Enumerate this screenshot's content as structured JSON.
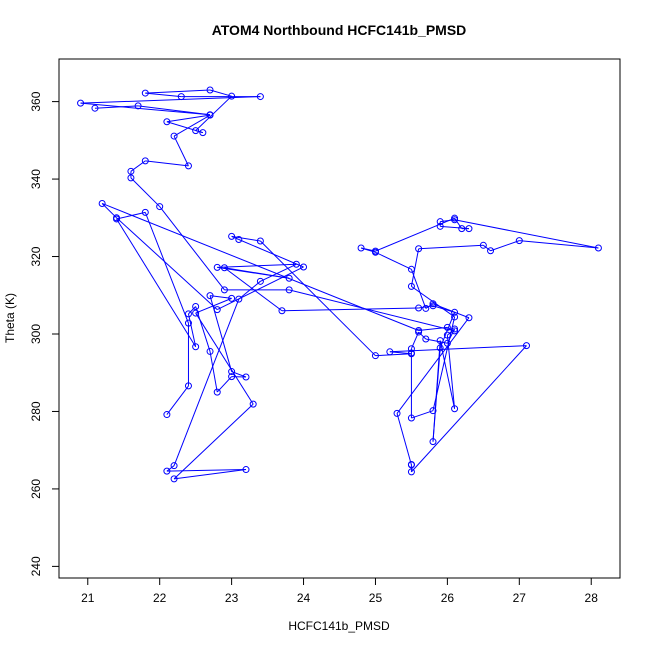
{
  "chart_data": {
    "type": "scatter",
    "title": "ATOM4 Northbound HCFC141b_PMSD",
    "xlabel": "HCFC141b_PMSD",
    "ylabel": "Theta (K)",
    "xlim": [
      20.6,
      28.4
    ],
    "ylim": [
      237,
      371
    ],
    "xticks": [
      21,
      22,
      23,
      24,
      25,
      26,
      27,
      28
    ],
    "yticks": [
      240,
      260,
      280,
      300,
      320,
      340,
      360
    ],
    "connected": true,
    "grid": false,
    "color": "#0000ff",
    "series": [
      {
        "points": [
          [
            22.1,
            279.2
          ],
          [
            22.4,
            286.6
          ],
          [
            22.4,
            302.8
          ],
          [
            21.8,
            331.4
          ],
          [
            21.4,
            329.7
          ],
          [
            22.5,
            296.7
          ],
          [
            22.4,
            305.2
          ],
          [
            22.5,
            307.1
          ],
          [
            22.7,
            295.5
          ],
          [
            22.8,
            285.0
          ],
          [
            23.0,
            289.0
          ],
          [
            23.2,
            288.9
          ],
          [
            23.0,
            290.3
          ],
          [
            22.7,
            309.9
          ],
          [
            23.0,
            309.2
          ],
          [
            22.5,
            305.4
          ],
          [
            23.3,
            281.9
          ],
          [
            22.2,
            262.6
          ],
          [
            23.2,
            265.0
          ],
          [
            22.1,
            264.6
          ],
          [
            22.2,
            266.0
          ],
          [
            23.1,
            309.0
          ],
          [
            23.4,
            313.6
          ],
          [
            23.9,
            318.0
          ],
          [
            22.8,
            317.2
          ],
          [
            23.8,
            314.4
          ],
          [
            22.9,
            317.1
          ],
          [
            23.7,
            306.0
          ],
          [
            25.6,
            306.7
          ],
          [
            25.8,
            307.3
          ],
          [
            26.1,
            305.6
          ],
          [
            25.9,
            296.4
          ],
          [
            25.8,
            272.2
          ],
          [
            25.9,
            298.3
          ],
          [
            26.1,
            280.7
          ],
          [
            26.0,
            299.7
          ],
          [
            26.1,
            301.3
          ],
          [
            26.0,
            297.6
          ],
          [
            25.7,
            298.7
          ],
          [
            25.6,
            300.5
          ],
          [
            25.5,
            296.2
          ],
          [
            25.5,
            295.1
          ],
          [
            25.5,
            278.3
          ],
          [
            25.8,
            280.2
          ],
          [
            26.1,
            304.4
          ],
          [
            25.5,
            312.3
          ],
          [
            25.6,
            322.0
          ],
          [
            26.5,
            322.9
          ],
          [
            26.6,
            321.5
          ],
          [
            27.0,
            324.1
          ],
          [
            28.1,
            322.2
          ],
          [
            26.1,
            329.5
          ],
          [
            25.9,
            329.0
          ],
          [
            25.9,
            327.8
          ],
          [
            26.3,
            327.2
          ],
          [
            26.2,
            327.2
          ],
          [
            26.1,
            329.9
          ],
          [
            25.0,
            321.4
          ],
          [
            24.8,
            322.2
          ],
          [
            25.0,
            321.1
          ],
          [
            25.5,
            316.7
          ],
          [
            25.7,
            306.6
          ],
          [
            25.8,
            307.8
          ],
          [
            26.3,
            304.2
          ],
          [
            25.3,
            279.5
          ],
          [
            25.5,
            266.2
          ],
          [
            25.5,
            266.3
          ],
          [
            25.5,
            264.4
          ],
          [
            27.1,
            297.0
          ],
          [
            25.2,
            295.4
          ],
          [
            25.5,
            294.9
          ],
          [
            25.0,
            294.4
          ],
          [
            23.4,
            324.0
          ],
          [
            23.0,
            325.2
          ],
          [
            23.1,
            324.4
          ],
          [
            24.0,
            317.3
          ],
          [
            22.8,
            306.3
          ],
          [
            21.4,
            330.0
          ],
          [
            21.2,
            333.7
          ],
          [
            25.6,
            300.9
          ],
          [
            26.0,
            301.7
          ],
          [
            26.1,
            300.8
          ],
          [
            23.8,
            311.4
          ],
          [
            22.9,
            311.4
          ],
          [
            22.0,
            332.9
          ],
          [
            21.6,
            340.3
          ],
          [
            21.6,
            342.0
          ],
          [
            21.8,
            344.7
          ],
          [
            22.4,
            343.4
          ],
          [
            22.2,
            351.1
          ],
          [
            22.7,
            356.5
          ],
          [
            22.1,
            354.8
          ],
          [
            22.6,
            352.0
          ],
          [
            22.5,
            352.5
          ],
          [
            23.0,
            361.4
          ],
          [
            22.7,
            363.0
          ],
          [
            21.8,
            362.2
          ],
          [
            22.3,
            361.3
          ],
          [
            23.4,
            361.3
          ],
          [
            20.9,
            359.6
          ],
          [
            22.7,
            356.6
          ],
          [
            21.7,
            358.9
          ],
          [
            21.1,
            358.3
          ]
        ]
      }
    ]
  }
}
